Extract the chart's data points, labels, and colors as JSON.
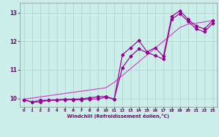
{
  "xlabel": "Windchill (Refroidissement éolien,°C)",
  "background_color": "#cceee8",
  "grid_color": "#aacccc",
  "line_color1": "#990099",
  "line_color2": "#cc44cc",
  "xlim": [
    -0.5,
    23.5
  ],
  "ylim": [
    9.7,
    13.35
  ],
  "xticks": [
    0,
    1,
    2,
    3,
    4,
    5,
    6,
    7,
    8,
    9,
    10,
    11,
    12,
    13,
    14,
    15,
    16,
    17,
    18,
    19,
    20,
    21,
    22,
    23
  ],
  "yticks": [
    10,
    11,
    12,
    13
  ],
  "x": [
    0,
    1,
    2,
    3,
    4,
    5,
    6,
    7,
    8,
    9,
    10,
    11,
    12,
    13,
    14,
    15,
    16,
    17,
    18,
    19,
    20,
    21,
    22,
    23
  ],
  "y_jagged": [
    9.95,
    9.87,
    9.93,
    9.93,
    9.95,
    9.97,
    9.97,
    9.98,
    10.02,
    10.05,
    10.07,
    9.97,
    11.53,
    11.77,
    12.03,
    11.63,
    11.77,
    11.47,
    12.87,
    13.07,
    12.77,
    12.53,
    12.43,
    12.73
  ],
  "y_low": [
    9.95,
    9.87,
    9.87,
    9.93,
    9.93,
    9.95,
    9.95,
    9.95,
    9.97,
    9.98,
    10.04,
    9.97,
    11.07,
    11.47,
    11.73,
    11.6,
    11.5,
    11.37,
    12.77,
    12.97,
    12.7,
    12.43,
    12.33,
    12.63
  ],
  "y_straight": [
    9.97,
    10.01,
    10.05,
    10.09,
    10.13,
    10.17,
    10.21,
    10.25,
    10.29,
    10.33,
    10.37,
    10.56,
    10.8,
    11.04,
    11.28,
    11.52,
    11.76,
    12.0,
    12.24,
    12.48,
    12.6,
    12.63,
    12.68,
    12.73
  ]
}
